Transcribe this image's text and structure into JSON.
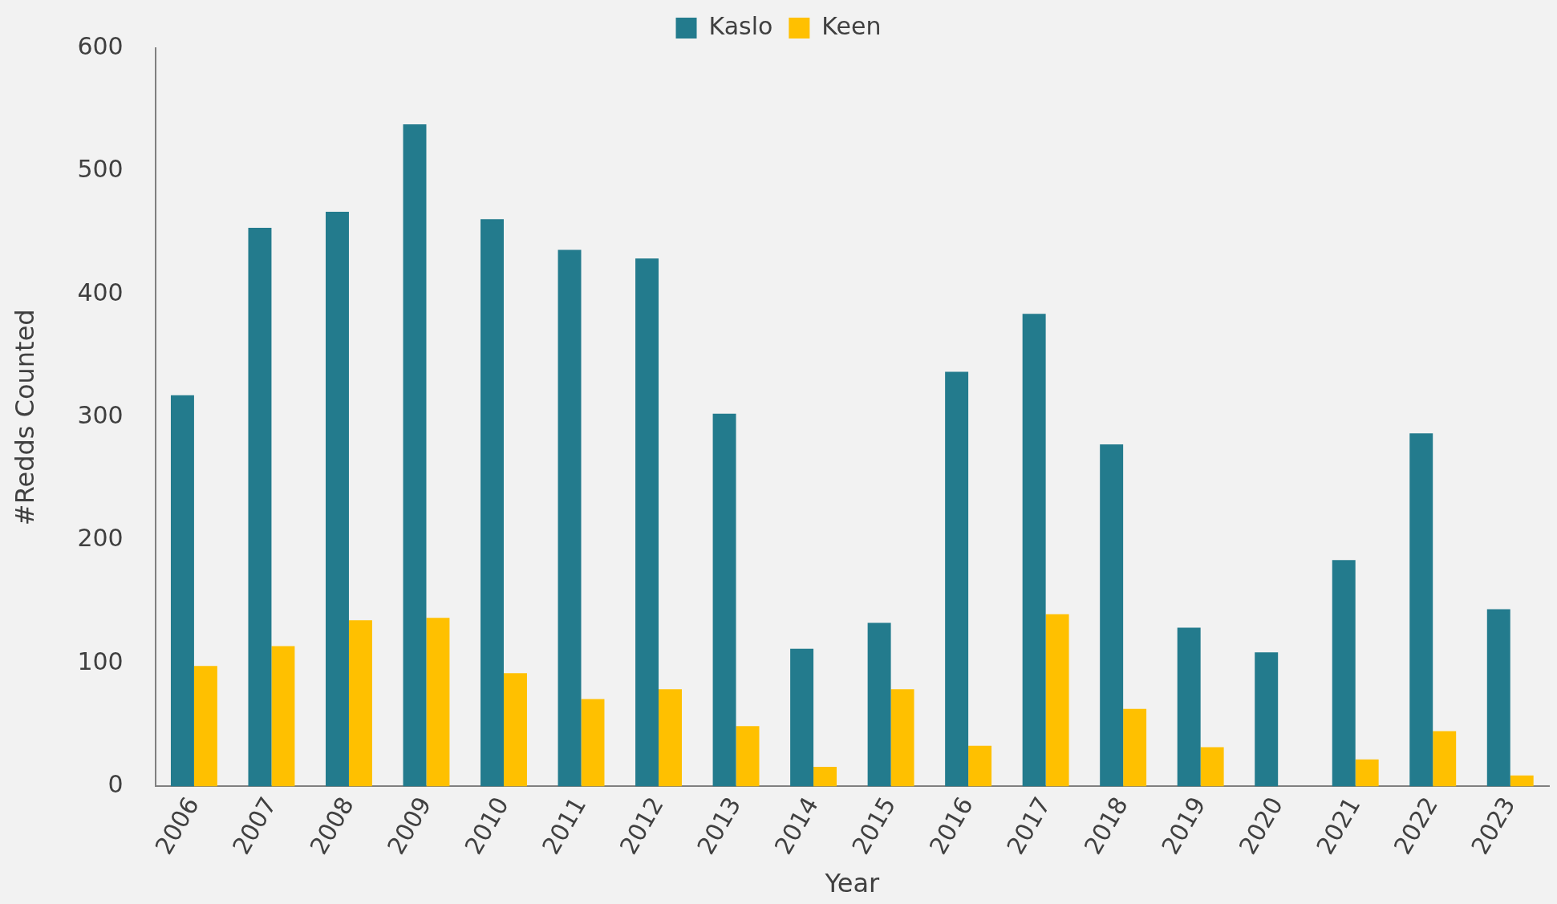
{
  "chart_data": {
    "type": "bar",
    "xlabel": "Year",
    "ylabel": "#Redds Counted",
    "categories": [
      "2006",
      "2007",
      "2008",
      "2009",
      "2010",
      "2011",
      "2012",
      "2013",
      "2014",
      "2015",
      "2016",
      "2017",
      "2018",
      "2019",
      "2020",
      "2021",
      "2022",
      "2023"
    ],
    "series": [
      {
        "name": "Kaslo",
        "color": "#237b8d",
        "values": [
          318,
          454,
          467,
          538,
          461,
          436,
          429,
          303,
          112,
          133,
          337,
          384,
          278,
          129,
          109,
          184,
          287,
          144
        ]
      },
      {
        "name": "Keen",
        "color": "#ffc000",
        "values": [
          98,
          114,
          135,
          137,
          92,
          71,
          79,
          49,
          16,
          79,
          33,
          140,
          63,
          32,
          0,
          22,
          45,
          9
        ]
      }
    ],
    "ylim": [
      0,
      600
    ],
    "yticks": [
      0,
      100,
      200,
      300,
      400,
      500,
      600
    ],
    "grid": false,
    "legend": "top"
  }
}
